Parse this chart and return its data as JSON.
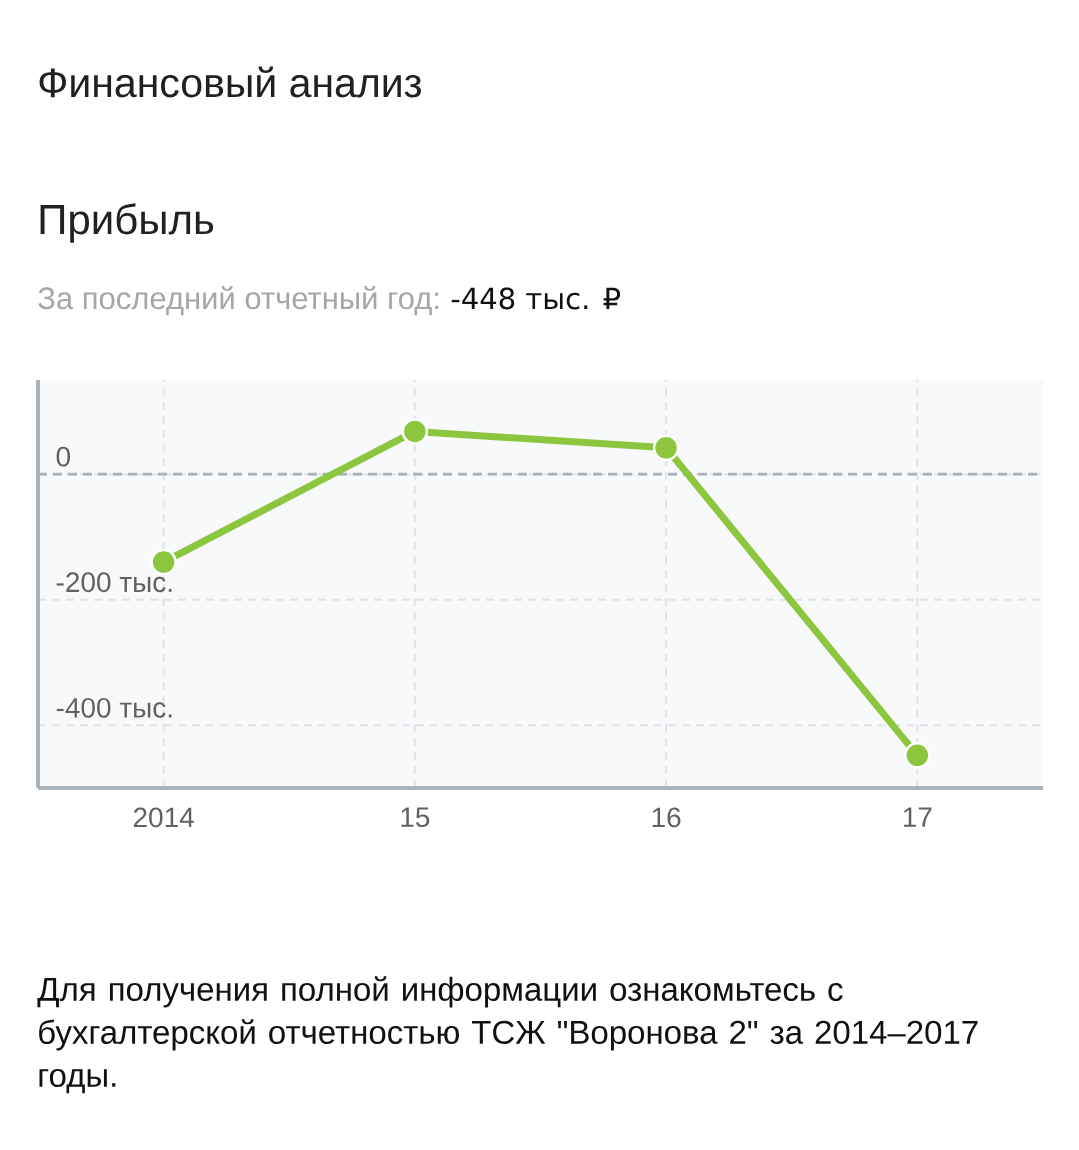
{
  "chart_data": {
    "type": "line",
    "title": "Финансовый анализ",
    "subtitle": "Прибыль",
    "annotations": [
      "За последний отчетный год:",
      "-448 тыс. ₽",
      "Для получения полной информации ознакомьтесь с бухгалтерской отчетностью ТСЖ \"Воронова 2\" за 2014–2017 годы."
    ],
    "categories": [
      "2014",
      "15",
      "16",
      "17"
    ],
    "series": [
      {
        "color": "#8cc63f",
        "values": [
          -140,
          68,
          42,
          -448
        ]
      }
    ],
    "ylim": [
      -500,
      150
    ],
    "yticks": [
      0,
      {
        "value": -200,
        "label": "-200 тыс."
      },
      {
        "value": -400,
        "label": "-400 тыс."
      }
    ],
    "grid": true,
    "marker": "circle",
    "line_style": "solid",
    "ref_lines": [
      {
        "axis": "y",
        "value": 0,
        "color": "#a9b1bb",
        "line_style": "dashed"
      }
    ]
  }
}
